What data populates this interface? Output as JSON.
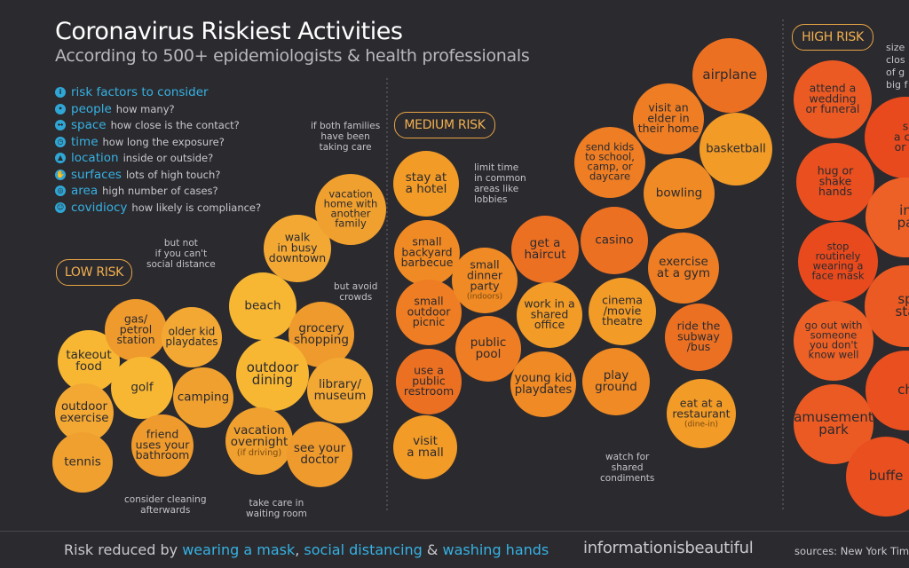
{
  "header": {
    "title": "Coronavirus Riskiest Activities",
    "subtitle": "According to 500+ epidemiologists & health professionals"
  },
  "risk_factors": {
    "heading": "risk factors to consider",
    "items": [
      {
        "name": "people",
        "desc": "how many?",
        "icon": "people-icon"
      },
      {
        "name": "space",
        "desc": "how close is the contact?",
        "icon": "space-icon"
      },
      {
        "name": "time",
        "desc": "how long the exposure?",
        "icon": "clock-icon"
      },
      {
        "name": "location",
        "desc": "inside or outside?",
        "icon": "location-icon"
      },
      {
        "name": "surfaces",
        "desc": "lots of high touch?",
        "icon": "hand-icon"
      },
      {
        "name": "area",
        "desc": "high number of cases?",
        "icon": "globe-icon"
      },
      {
        "name": "covidiocy",
        "desc": "how likely is compliance?",
        "icon": "head-icon"
      }
    ]
  },
  "sections": {
    "low": "LOW RISK",
    "medium": "MEDIUM RISK",
    "high": "HIGH RISK"
  },
  "notes": {
    "both_families": "if both families\nhave been\ntaking care",
    "but_not": "but not\nif you can't\nsocial distance",
    "avoid_crowds": "but avoid\ncrowds",
    "consider_cleaning": "consider cleaning\nafterwards",
    "waiting_room": "take care in\nwaiting room",
    "limit_time": "limit time\nin common\nareas like\nlobbies",
    "condiments": "watch for\nshared\ncondiments",
    "size_note": "size\nclos\nof g\nbig f"
  },
  "footer": {
    "prefix": "Risk reduced by ",
    "mask": "wearing a mask",
    "sep1": ", ",
    "distancing": "social distancing",
    "sep2": " & ",
    "hands": "washing hands",
    "brand": "informationisbeautiful",
    "sources": "sources: New York Times"
  },
  "colors": {
    "background": "#2b2a2f",
    "low": "#f7b733",
    "medium": "#f08a24",
    "high": "#ee5a24",
    "accent": "#36b2e3"
  },
  "chart_data": {
    "type": "bubble",
    "title": "Coronavirus Riskiest Activities",
    "categories": [
      "LOW RISK",
      "MEDIUM RISK",
      "HIGH RISK"
    ],
    "activities": [
      {
        "label": "takeout\nfood",
        "risk": "low"
      },
      {
        "label": "outdoor\nexercise",
        "risk": "low"
      },
      {
        "label": "tennis",
        "risk": "low"
      },
      {
        "label": "gas/\npetrol\nstation",
        "risk": "low"
      },
      {
        "label": "golf",
        "risk": "low"
      },
      {
        "label": "older kid\nplaydates",
        "risk": "low"
      },
      {
        "label": "camping",
        "risk": "low"
      },
      {
        "label": "friend\nuses your\nbathroom",
        "risk": "low"
      },
      {
        "label": "beach",
        "risk": "low"
      },
      {
        "label": "walk\nin busy\ndowntown",
        "risk": "low"
      },
      {
        "label": "vacation\nhome with\nanother\nfamily",
        "risk": "low"
      },
      {
        "label": "grocery\nshopping",
        "risk": "low"
      },
      {
        "label": "outdoor\ndining",
        "risk": "low"
      },
      {
        "label": "library/\nmuseum",
        "risk": "low"
      },
      {
        "label": "vacation\novernight",
        "sub": "(if driving)",
        "risk": "low"
      },
      {
        "label": "see your\ndoctor",
        "risk": "low"
      },
      {
        "label": "stay at\na hotel",
        "risk": "medium"
      },
      {
        "label": "small\nbackyard\nbarbecue",
        "risk": "medium"
      },
      {
        "label": "small\noutdoor\npicnic",
        "risk": "medium"
      },
      {
        "label": "use a\npublic\nrestroom",
        "risk": "medium"
      },
      {
        "label": "visit\na mall",
        "risk": "medium"
      },
      {
        "label": "small\ndinner\nparty",
        "sub": "(indoors)",
        "risk": "medium"
      },
      {
        "label": "public\npool",
        "risk": "medium"
      },
      {
        "label": "get a\nhaircut",
        "risk": "medium"
      },
      {
        "label": "work in a\nshared\noffice",
        "risk": "medium"
      },
      {
        "label": "young kid\nplaydates",
        "risk": "medium"
      },
      {
        "label": "send kids\nto school,\ncamp, or\ndaycare",
        "risk": "medium"
      },
      {
        "label": "casino",
        "risk": "medium"
      },
      {
        "label": "cinema\n/movie\ntheatre",
        "risk": "medium"
      },
      {
        "label": "play\nground",
        "risk": "medium"
      },
      {
        "label": "visit an\nelder in\ntheir home",
        "risk": "medium"
      },
      {
        "label": "airplane",
        "risk": "medium"
      },
      {
        "label": "basketball",
        "risk": "medium"
      },
      {
        "label": "bowling",
        "risk": "medium"
      },
      {
        "label": "exercise\nat a gym",
        "risk": "medium"
      },
      {
        "label": "ride the\nsubway\n/bus",
        "risk": "medium"
      },
      {
        "label": "eat at a\nrestaurant",
        "sub": "(dine-in)",
        "risk": "medium"
      },
      {
        "label": "attend a\nwedding\nor funeral",
        "risk": "high"
      },
      {
        "label": "hug or\nshake\nhands",
        "risk": "high"
      },
      {
        "label": "stop\nroutinely\nwearing a\nface mask",
        "risk": "high"
      },
      {
        "label": "go out with\nsomeone\nyou don't\nknow well",
        "risk": "high"
      },
      {
        "label": "amusement\npark",
        "risk": "high"
      },
      {
        "label": "buffe",
        "risk": "high"
      },
      {
        "label": "s\na co\nor p",
        "risk": "high"
      },
      {
        "label": "in\npa",
        "risk": "high"
      },
      {
        "label": "sp\nsta",
        "risk": "high"
      },
      {
        "label": "ch",
        "risk": "high"
      }
    ]
  }
}
